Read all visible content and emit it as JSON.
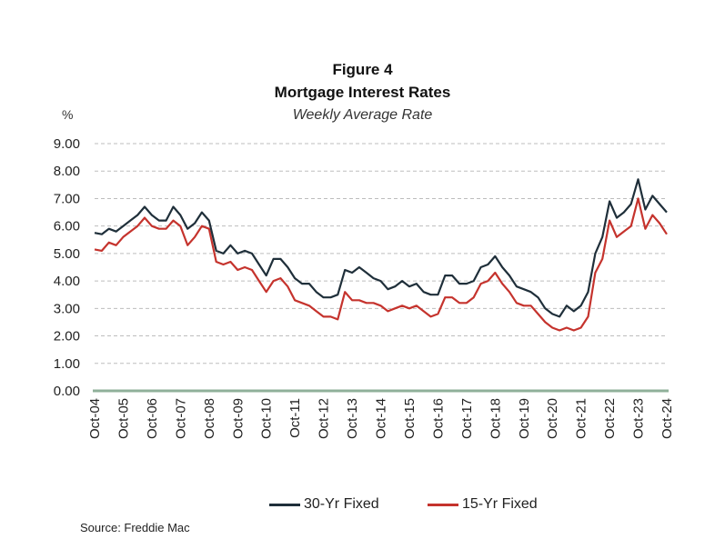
{
  "figure_label": "Figure 4",
  "chart_data": {
    "type": "line",
    "title": "Mortgage Interest Rates",
    "subtitle": "Weekly Average Rate",
    "ylabel": "%",
    "xlabel": "",
    "ylim": [
      0,
      9
    ],
    "yticks": [
      "0.00",
      "1.00",
      "2.00",
      "3.00",
      "4.00",
      "5.00",
      "6.00",
      "7.00",
      "8.00",
      "9.00"
    ],
    "grid": "horizontal dashed",
    "legend_position": "bottom",
    "categories": [
      "Oct-04",
      "Oct-05",
      "Oct-06",
      "Oct-07",
      "Oct-08",
      "Oct-09",
      "Oct-10",
      "Oct-11",
      "Oct-12",
      "Oct-13",
      "Oct-14",
      "Oct-15",
      "Oct-16",
      "Oct-17",
      "Oct-18",
      "Oct-19",
      "Oct-20",
      "Oct-21",
      "Oct-22",
      "Oct-23",
      "Oct-24"
    ],
    "series": [
      {
        "name": "30-Yr Fixed",
        "color": "#1f2f3a",
        "x": [
          2004.75,
          2005.0,
          2005.25,
          2005.5,
          2005.75,
          2006.0,
          2006.25,
          2006.5,
          2006.75,
          2007.0,
          2007.25,
          2007.5,
          2007.75,
          2008.0,
          2008.25,
          2008.5,
          2008.75,
          2009.0,
          2009.25,
          2009.5,
          2009.75,
          2010.0,
          2010.25,
          2010.5,
          2010.75,
          2011.0,
          2011.25,
          2011.5,
          2011.75,
          2012.0,
          2012.25,
          2012.5,
          2012.75,
          2013.0,
          2013.25,
          2013.5,
          2013.75,
          2014.0,
          2014.25,
          2014.5,
          2014.75,
          2015.0,
          2015.25,
          2015.5,
          2015.75,
          2016.0,
          2016.25,
          2016.5,
          2016.75,
          2017.0,
          2017.25,
          2017.5,
          2017.75,
          2018.0,
          2018.25,
          2018.5,
          2018.75,
          2019.0,
          2019.25,
          2019.5,
          2019.75,
          2020.0,
          2020.25,
          2020.5,
          2020.75,
          2021.0,
          2021.25,
          2021.5,
          2021.75,
          2022.0,
          2022.25,
          2022.5,
          2022.75,
          2023.0,
          2023.25,
          2023.5,
          2023.75,
          2024.0,
          2024.25,
          2024.5,
          2024.75
        ],
        "values": [
          5.75,
          5.7,
          5.9,
          5.8,
          6.0,
          6.2,
          6.4,
          6.7,
          6.4,
          6.2,
          6.2,
          6.7,
          6.4,
          5.9,
          6.1,
          6.5,
          6.2,
          5.1,
          5.0,
          5.3,
          5.0,
          5.1,
          5.0,
          4.6,
          4.2,
          4.8,
          4.8,
          4.5,
          4.1,
          3.9,
          3.9,
          3.6,
          3.4,
          3.4,
          3.5,
          4.4,
          4.3,
          4.5,
          4.3,
          4.1,
          4.0,
          3.7,
          3.8,
          4.0,
          3.8,
          3.9,
          3.6,
          3.5,
          3.5,
          4.2,
          4.2,
          3.9,
          3.9,
          4.0,
          4.5,
          4.6,
          4.9,
          4.5,
          4.2,
          3.8,
          3.7,
          3.6,
          3.4,
          3.0,
          2.8,
          2.7,
          3.1,
          2.9,
          3.1,
          3.6,
          5.0,
          5.6,
          6.9,
          6.3,
          6.5,
          6.8,
          7.7,
          6.6,
          7.1,
          6.8,
          6.5
        ]
      },
      {
        "name": "15-Yr Fixed",
        "color": "#c5332d",
        "x": [
          2004.75,
          2005.0,
          2005.25,
          2005.5,
          2005.75,
          2006.0,
          2006.25,
          2006.5,
          2006.75,
          2007.0,
          2007.25,
          2007.5,
          2007.75,
          2008.0,
          2008.25,
          2008.5,
          2008.75,
          2009.0,
          2009.25,
          2009.5,
          2009.75,
          2010.0,
          2010.25,
          2010.5,
          2010.75,
          2011.0,
          2011.25,
          2011.5,
          2011.75,
          2012.0,
          2012.25,
          2012.5,
          2012.75,
          2013.0,
          2013.25,
          2013.5,
          2013.75,
          2014.0,
          2014.25,
          2014.5,
          2014.75,
          2015.0,
          2015.25,
          2015.5,
          2015.75,
          2016.0,
          2016.25,
          2016.5,
          2016.75,
          2017.0,
          2017.25,
          2017.5,
          2017.75,
          2018.0,
          2018.25,
          2018.5,
          2018.75,
          2019.0,
          2019.25,
          2019.5,
          2019.75,
          2020.0,
          2020.25,
          2020.5,
          2020.75,
          2021.0,
          2021.25,
          2021.5,
          2021.75,
          2022.0,
          2022.25,
          2022.5,
          2022.75,
          2023.0,
          2023.25,
          2023.5,
          2023.75,
          2024.0,
          2024.25,
          2024.5,
          2024.75
        ],
        "values": [
          5.15,
          5.1,
          5.4,
          5.3,
          5.6,
          5.8,
          6.0,
          6.3,
          6.0,
          5.9,
          5.9,
          6.2,
          6.0,
          5.3,
          5.6,
          6.0,
          5.9,
          4.7,
          4.6,
          4.7,
          4.4,
          4.5,
          4.4,
          4.0,
          3.6,
          4.0,
          4.1,
          3.8,
          3.3,
          3.2,
          3.1,
          2.9,
          2.7,
          2.7,
          2.6,
          3.6,
          3.3,
          3.3,
          3.2,
          3.2,
          3.1,
          2.9,
          3.0,
          3.1,
          3.0,
          3.1,
          2.9,
          2.7,
          2.8,
          3.4,
          3.4,
          3.2,
          3.2,
          3.4,
          3.9,
          4.0,
          4.3,
          3.9,
          3.6,
          3.2,
          3.1,
          3.1,
          2.8,
          2.5,
          2.3,
          2.2,
          2.3,
          2.2,
          2.3,
          2.7,
          4.3,
          4.8,
          6.2,
          5.6,
          5.8,
          6.0,
          7.0,
          5.9,
          6.4,
          6.1,
          5.7
        ]
      }
    ]
  },
  "source": "Source: Freddie Mac"
}
